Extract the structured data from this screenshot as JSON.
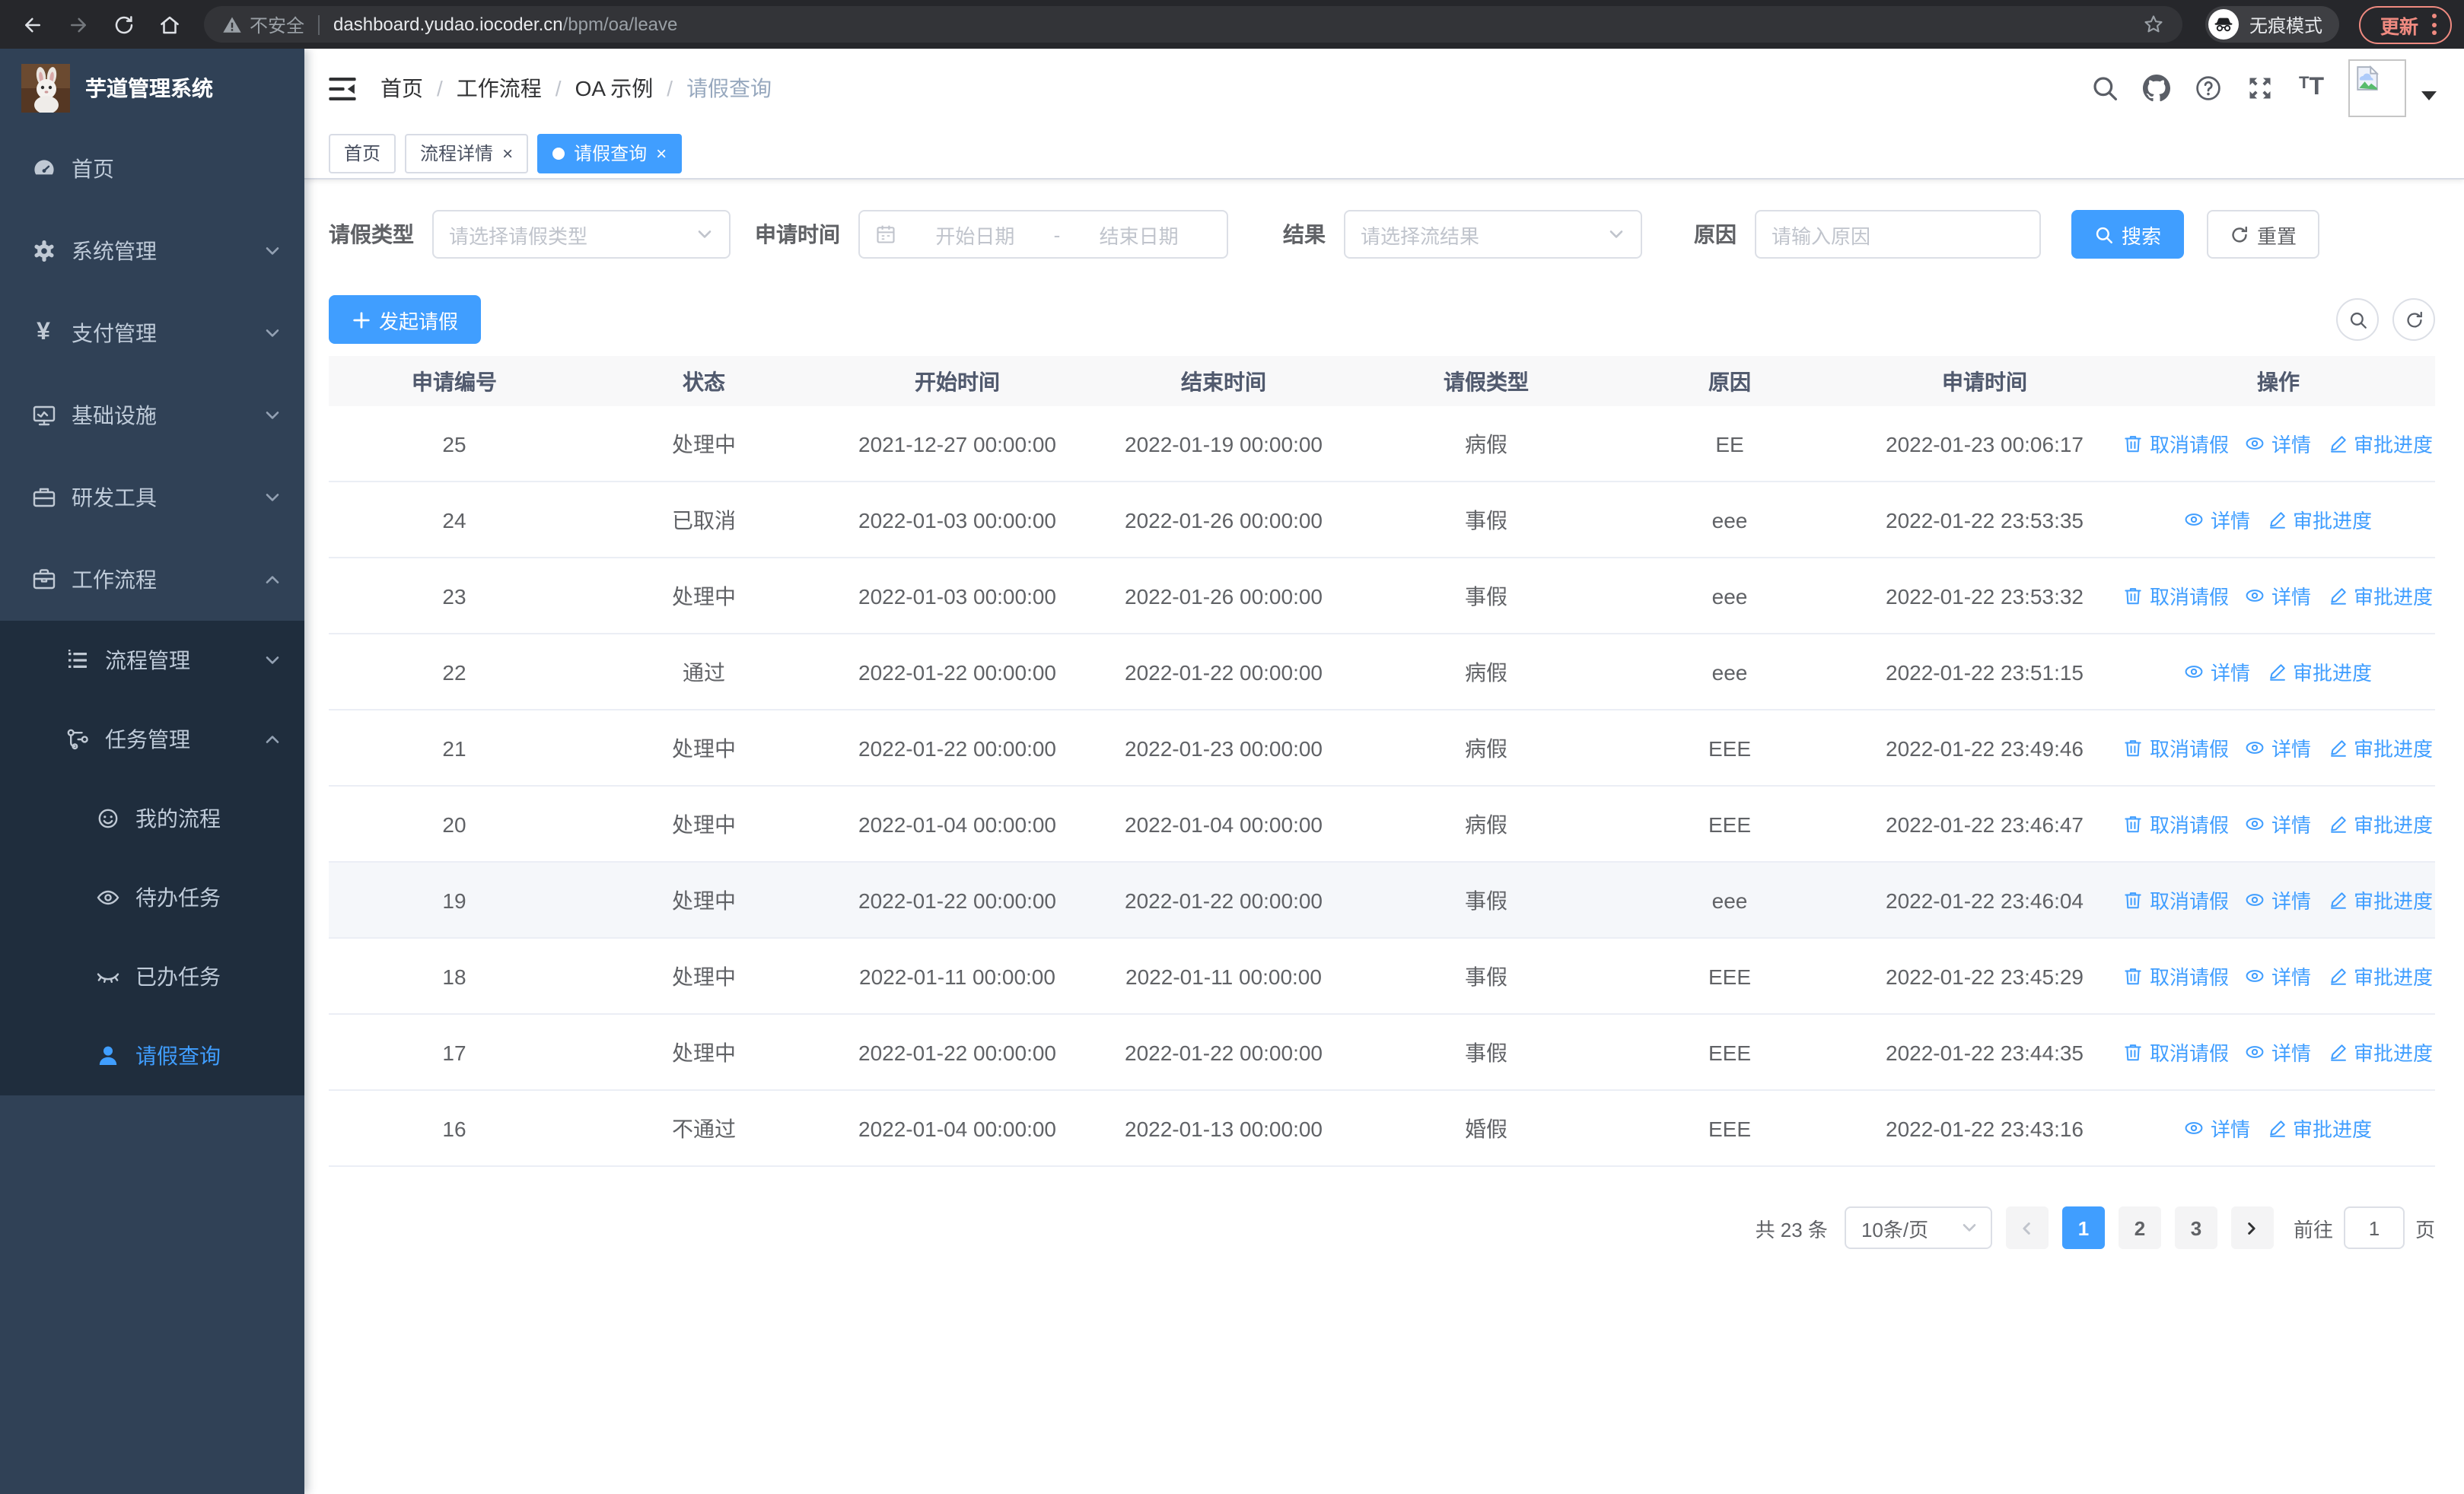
{
  "colors": {
    "primary": "#409eff",
    "sidebar_bg": "#304156",
    "submenu_bg": "#1f2d3d",
    "sidebar_text": "#bfcbd9",
    "update_accent": "#ef8a80",
    "table_header_bg": "#f8f8f9",
    "row_highlight": "#f5f7fa"
  },
  "browser": {
    "security_label": "不安全",
    "url_host": "dashboard.yudao.iocoder.cn",
    "url_path": "/bpm/oa/leave",
    "incognito_label": "无痕模式",
    "update_label": "更新"
  },
  "sidebar": {
    "app_title": "芋道管理系统",
    "menu": [
      {
        "id": "home",
        "label": "首页",
        "icon": "dashboard",
        "level": 1
      },
      {
        "id": "system",
        "label": "系统管理",
        "icon": "gear",
        "level": 1,
        "chevron": "down"
      },
      {
        "id": "payment",
        "label": "支付管理",
        "icon": "yuan",
        "level": 1,
        "chevron": "down"
      },
      {
        "id": "infra",
        "label": "基础设施",
        "icon": "monitor",
        "level": 1,
        "chevron": "down"
      },
      {
        "id": "devtools",
        "label": "研发工具",
        "icon": "toolbox",
        "level": 1,
        "chevron": "down"
      },
      {
        "id": "workflow",
        "label": "工作流程",
        "icon": "briefcase",
        "level": 1,
        "chevron": "up"
      },
      {
        "id": "process-mgmt",
        "label": "流程管理",
        "icon": "tree",
        "level": 2,
        "chevron": "down",
        "sub": true
      },
      {
        "id": "task-mgmt",
        "label": "任务管理",
        "icon": "flow",
        "level": 2,
        "chevron": "up",
        "sub": true
      },
      {
        "id": "my-process",
        "label": "我的流程",
        "icon": "face",
        "level": 3,
        "sub": true
      },
      {
        "id": "todo-tasks",
        "label": "待办任务",
        "icon": "eyeOpen",
        "level": 3,
        "sub": true
      },
      {
        "id": "done-tasks",
        "label": "已办任务",
        "icon": "eyeClosed",
        "level": 3,
        "sub": true
      },
      {
        "id": "leave-query",
        "label": "请假查询",
        "icon": "user",
        "level": 3,
        "sub": true,
        "active": true
      }
    ]
  },
  "breadcrumb": [
    "首页",
    "工作流程",
    "OA 示例",
    "请假查询"
  ],
  "tabs": [
    {
      "id": "home",
      "label": "首页",
      "closable": false,
      "active": false
    },
    {
      "id": "process-detail",
      "label": "流程详情",
      "closable": true,
      "active": false
    },
    {
      "id": "leave-query",
      "label": "请假查询",
      "closable": true,
      "active": true
    }
  ],
  "filters": {
    "leave_type_label": "请假类型",
    "leave_type_placeholder": "请选择请假类型",
    "apply_time_label": "申请时间",
    "date_start_placeholder": "开始日期",
    "date_separator": "-",
    "date_end_placeholder": "结束日期",
    "result_label": "结果",
    "result_placeholder": "请选择流结果",
    "reason_label": "原因",
    "reason_placeholder": "请输入原因",
    "search_label": "搜索",
    "reset_label": "重置"
  },
  "toolbar": {
    "create_label": "发起请假"
  },
  "table": {
    "headers": [
      "申请编号",
      "状态",
      "开始时间",
      "结束时间",
      "请假类型",
      "原因",
      "申请时间",
      "操作"
    ],
    "action_labels": {
      "cancel": "取消请假",
      "detail": "详情",
      "progress": "审批进度"
    },
    "rows": [
      {
        "id": "25",
        "status": "处理中",
        "start": "2021-12-27 00:00:00",
        "end": "2022-01-19 00:00:00",
        "type": "病假",
        "reason": "EE",
        "applied": "2022-01-23 00:06:17",
        "actions": [
          "cancel",
          "detail",
          "progress"
        ]
      },
      {
        "id": "24",
        "status": "已取消",
        "start": "2022-01-03 00:00:00",
        "end": "2022-01-26 00:00:00",
        "type": "事假",
        "reason": "eee",
        "applied": "2022-01-22 23:53:35",
        "actions": [
          "detail",
          "progress"
        ]
      },
      {
        "id": "23",
        "status": "处理中",
        "start": "2022-01-03 00:00:00",
        "end": "2022-01-26 00:00:00",
        "type": "事假",
        "reason": "eee",
        "applied": "2022-01-22 23:53:32",
        "actions": [
          "cancel",
          "detail",
          "progress"
        ]
      },
      {
        "id": "22",
        "status": "通过",
        "start": "2022-01-22 00:00:00",
        "end": "2022-01-22 00:00:00",
        "type": "病假",
        "reason": "eee",
        "applied": "2022-01-22 23:51:15",
        "actions": [
          "detail",
          "progress"
        ]
      },
      {
        "id": "21",
        "status": "处理中",
        "start": "2022-01-22 00:00:00",
        "end": "2022-01-23 00:00:00",
        "type": "病假",
        "reason": "EEE",
        "applied": "2022-01-22 23:49:46",
        "actions": [
          "cancel",
          "detail",
          "progress"
        ]
      },
      {
        "id": "20",
        "status": "处理中",
        "start": "2022-01-04 00:00:00",
        "end": "2022-01-04 00:00:00",
        "type": "病假",
        "reason": "EEE",
        "applied": "2022-01-22 23:46:47",
        "actions": [
          "cancel",
          "detail",
          "progress"
        ]
      },
      {
        "id": "19",
        "status": "处理中",
        "start": "2022-01-22 00:00:00",
        "end": "2022-01-22 00:00:00",
        "type": "事假",
        "reason": "eee",
        "applied": "2022-01-22 23:46:04",
        "actions": [
          "cancel",
          "detail",
          "progress"
        ],
        "highlighted": true
      },
      {
        "id": "18",
        "status": "处理中",
        "start": "2022-01-11 00:00:00",
        "end": "2022-01-11 00:00:00",
        "type": "事假",
        "reason": "EEE",
        "applied": "2022-01-22 23:45:29",
        "actions": [
          "cancel",
          "detail",
          "progress"
        ]
      },
      {
        "id": "17",
        "status": "处理中",
        "start": "2022-01-22 00:00:00",
        "end": "2022-01-22 00:00:00",
        "type": "事假",
        "reason": "EEE",
        "applied": "2022-01-22 23:44:35",
        "actions": [
          "cancel",
          "detail",
          "progress"
        ]
      },
      {
        "id": "16",
        "status": "不通过",
        "start": "2022-01-04 00:00:00",
        "end": "2022-01-13 00:00:00",
        "type": "婚假",
        "reason": "EEE",
        "applied": "2022-01-22 23:43:16",
        "actions": [
          "detail",
          "progress"
        ]
      }
    ]
  },
  "pagination": {
    "total_label": "共 23 条",
    "page_size_label": "10条/页",
    "pages": [
      "1",
      "2",
      "3"
    ],
    "active_page": "1",
    "goto_label": "前往",
    "goto_value": "1",
    "goto_suffix": "页"
  }
}
